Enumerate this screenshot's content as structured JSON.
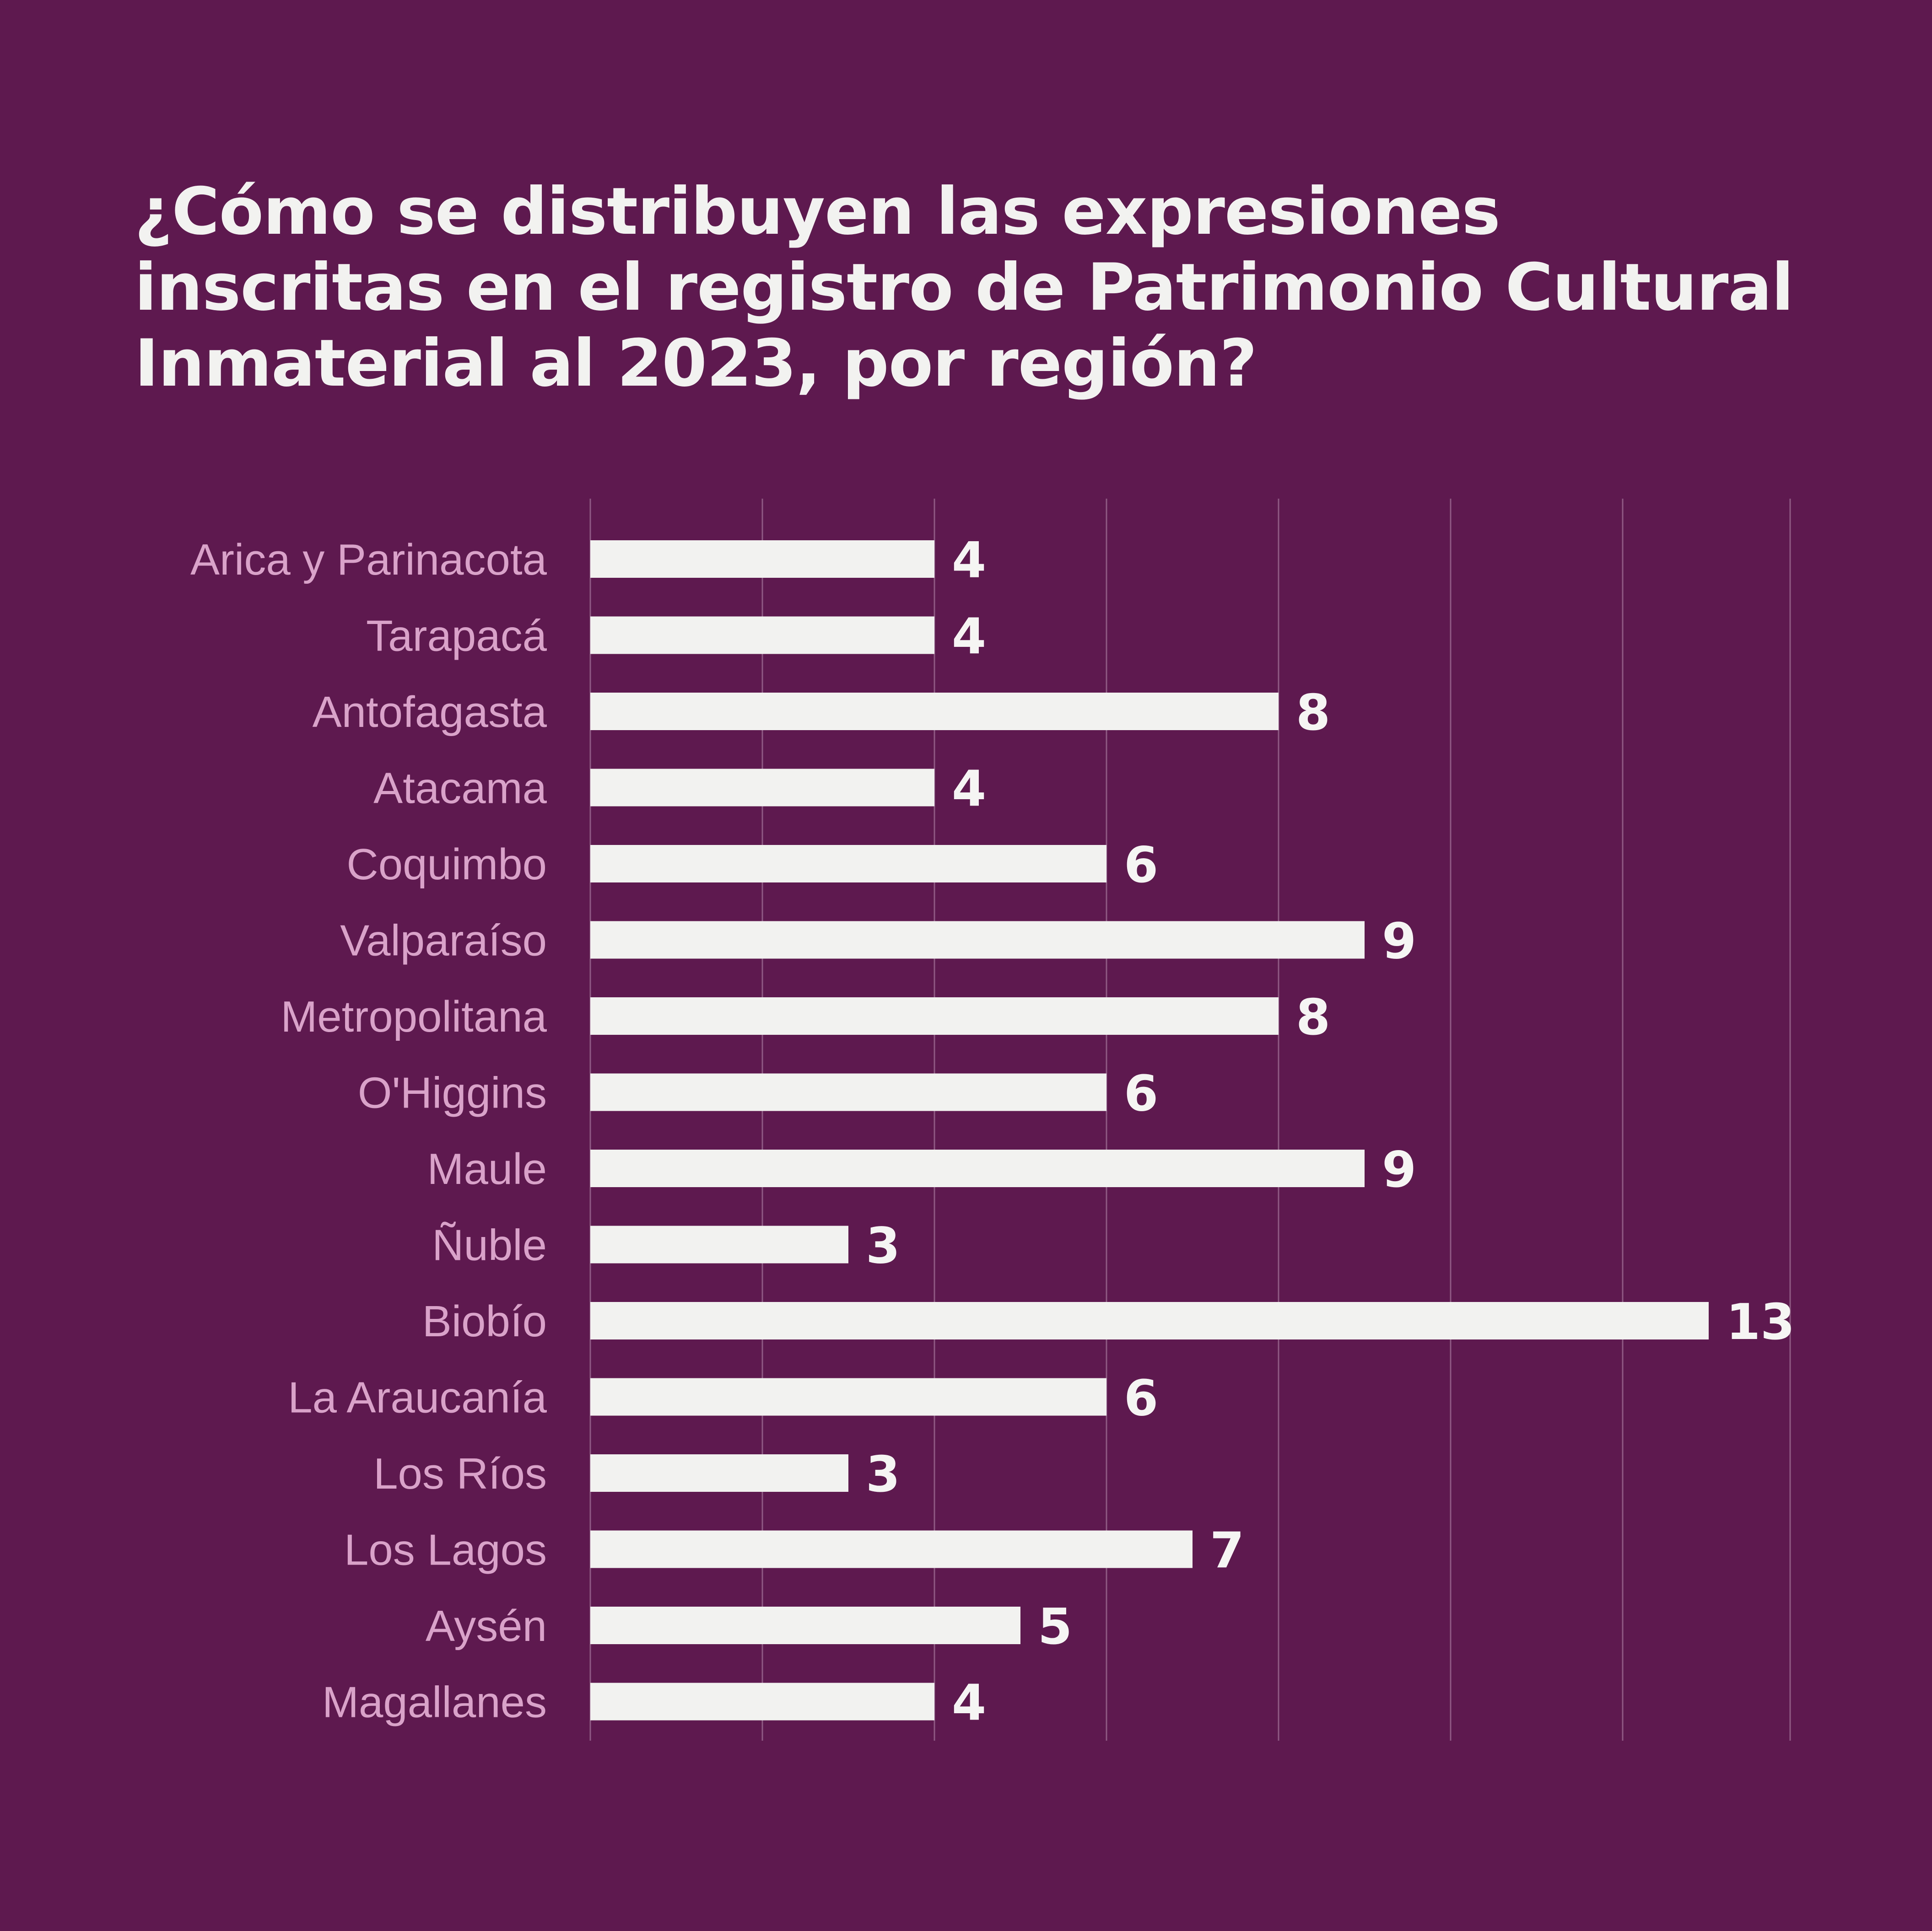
{
  "title": "¿Cómo se distribuyen las expresiones inscritas en el registro de Patrimonio Cultural Inmaterial al 2023, por región?",
  "colors": {
    "background": "#5e1a4f",
    "bar": "#f2f2f0",
    "category_label": "#d9a3c9",
    "value_label": "#f5f5f3",
    "gridline": "#8d5a83"
  },
  "chart_data": {
    "type": "bar",
    "orientation": "horizontal",
    "title": "¿Cómo se distribuyen las expresiones inscritas en el registro de Patrimonio Cultural Inmaterial al 2023, por región?",
    "xlabel": "",
    "ylabel": "",
    "categories": [
      "Arica y Parinacota",
      "Tarapacá",
      "Antofagasta",
      "Atacama",
      "Coquimbo",
      "Valparaíso",
      "Metropolitana",
      "O'Higgins",
      "Maule",
      "Ñuble",
      "Biobío",
      "La Araucanía",
      "Los Ríos",
      "Los Lagos",
      "Aysén",
      "Magallanes"
    ],
    "values": [
      4,
      4,
      8,
      4,
      6,
      9,
      8,
      6,
      9,
      3,
      13,
      6,
      3,
      7,
      5,
      4
    ],
    "xlim": [
      0,
      14
    ],
    "grid": true,
    "legend": "none"
  }
}
